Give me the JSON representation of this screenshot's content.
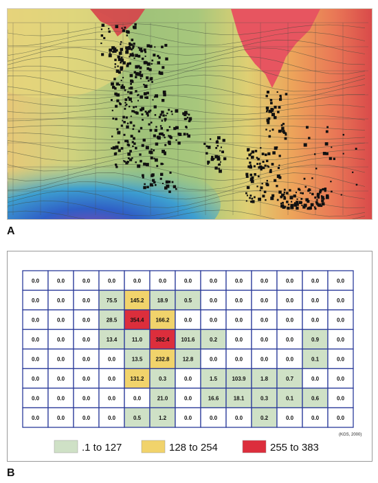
{
  "panels": {
    "a": {
      "letter": "A"
    },
    "b": {
      "letter": "B"
    }
  },
  "map_b": {
    "credit": "(KGS, 2000)",
    "legend": [
      {
        "label": ".1 to 127",
        "color": "#cfe1c6"
      },
      {
        "label": "128 to 254",
        "color": "#f1d36b"
      },
      {
        "label": "255 to 383",
        "color": "#dc2e3c"
      }
    ],
    "county_values": [
      [
        "0.0",
        "0.0",
        "0.0",
        "0.0",
        "0.0",
        "0.0",
        "0.0",
        "0.0",
        "0.0",
        "0.0",
        "0.0",
        "0.0",
        "0.0"
      ],
      [
        "0.0",
        "0.0",
        "0.0",
        "75.5",
        "145.2",
        "18.9",
        "0.5",
        "0.0",
        "0.0",
        "0.0",
        "0.0",
        "0.0",
        "0.0"
      ],
      [
        "0.0",
        "0.0",
        "0.0",
        "28.5",
        "354.4",
        "166.2",
        "0.0",
        "0.0",
        "0.0",
        "0.0",
        "0.0",
        "0.0",
        "0.0"
      ],
      [
        "0.0",
        "0.0",
        "0.0",
        "13.4",
        "11.0",
        "382.4",
        "101.6",
        "0.2",
        "0.0",
        "0.0",
        "0.0",
        "0.9",
        "0.0"
      ],
      [
        "0.0",
        "0.0",
        "0.0",
        "0.0",
        "13.5",
        "232.8",
        "12.8",
        "0.0",
        "0.0",
        "0.0",
        "0.0",
        "0.1",
        "0.0"
      ],
      [
        "0.0",
        "0.0",
        "0.0",
        "0.0",
        "131.2",
        "0.3",
        "0.0",
        "1.5",
        "103.9",
        "1.8",
        "0.7",
        "0.0",
        "0.0"
      ],
      [
        "0.0",
        "0.0",
        "0.0",
        "0.0",
        "0.0",
        "21.0",
        "0.0",
        "16.6",
        "18.1",
        "0.3",
        "0.1",
        "0.6",
        "0.0"
      ],
      [
        "0.0",
        "0.0",
        "0.0",
        "0.0",
        "0.5",
        "1.2",
        "0.0",
        "0.0",
        "0.0",
        "0.2",
        "0.0",
        "0.0",
        "0.0"
      ]
    ]
  }
}
